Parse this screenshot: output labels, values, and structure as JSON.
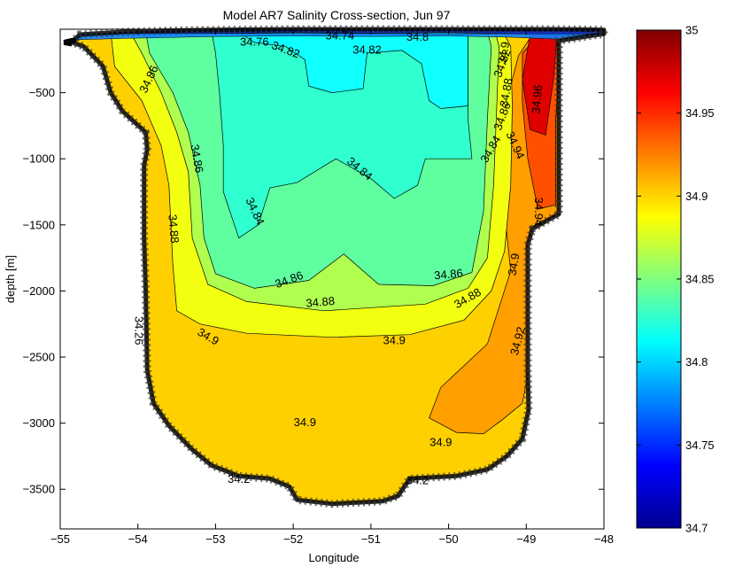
{
  "chart_data": {
    "type": "contour",
    "title": "Model AR7 Salinity Cross-section, Jun 97",
    "xlabel": "Longitude",
    "ylabel": "depth [m]",
    "xlim": [
      -55,
      -48
    ],
    "ylim": [
      -3800,
      -20
    ],
    "xticks": [
      -55,
      -54,
      -53,
      -52,
      -51,
      -50,
      -49,
      -48
    ],
    "xtick_labels": [
      "−55",
      "−54",
      "−53",
      "−52",
      "−51",
      "−50",
      "−49",
      "−48"
    ],
    "yticks": [
      -500,
      -1000,
      -1500,
      -2000,
      -2500,
      -3000,
      -3500
    ],
    "ytick_labels": [
      "−500",
      "−1000",
      "−1500",
      "−2000",
      "−2500",
      "−3000",
      "−3500"
    ],
    "colorbar": {
      "min": 34.7,
      "max": 35,
      "colormap": "jet",
      "ticks": [
        34.7,
        34.75,
        34.8,
        34.85,
        34.9,
        34.95,
        35
      ],
      "tick_labels": [
        "34.7",
        "34.75",
        "34.8",
        "34.85",
        "34.9",
        "34.95",
        "35"
      ]
    },
    "levels": [
      {
        "value": 34.82,
        "color": "#10ffff"
      },
      {
        "value": 34.84,
        "color": "#30ffcf"
      },
      {
        "value": 34.86,
        "color": "#5fffa0"
      },
      {
        "value": 34.88,
        "color": "#b0ff4f"
      },
      {
        "value": 34.9,
        "color": "#f2ff10"
      },
      {
        "value": 34.92,
        "color": "#ffd000"
      },
      {
        "value": 34.94,
        "color": "#ff9f00"
      },
      {
        "value": 34.96,
        "color": "#ff5000"
      },
      {
        "value": 34.98,
        "color": "#e00000"
      }
    ],
    "contour_labels": [
      {
        "text": "34.82",
        "x": -51.05,
        "y": -180,
        "rotate": 0
      },
      {
        "text": "34.82",
        "x": -52.1,
        "y": -180,
        "rotate": 20
      },
      {
        "text": "34.82",
        "x": -49.3,
        "y": -280,
        "rotate": -70
      },
      {
        "text": "34.84",
        "x": -52.5,
        "y": -1400,
        "rotate": 65
      },
      {
        "text": "34.84",
        "x": -51.15,
        "y": -1080,
        "rotate": 40
      },
      {
        "text": "34.84",
        "x": -49.45,
        "y": -930,
        "rotate": -60
      },
      {
        "text": "34.86",
        "x": -53.25,
        "y": -1000,
        "rotate": 80
      },
      {
        "text": "34.86",
        "x": -52.05,
        "y": -1920,
        "rotate": -20
      },
      {
        "text": "34.86",
        "x": -50.0,
        "y": -1880,
        "rotate": -5
      },
      {
        "text": "34.86",
        "x": -53.85,
        "y": -400,
        "rotate": -65
      },
      {
        "text": "34.86",
        "x": -49.3,
        "y": -680,
        "rotate": -70
      },
      {
        "text": "34.88",
        "x": -53.55,
        "y": -1530,
        "rotate": 85
      },
      {
        "text": "34.88",
        "x": -51.65,
        "y": -2090,
        "rotate": -5
      },
      {
        "text": "34.88",
        "x": -49.75,
        "y": -2060,
        "rotate": -30
      },
      {
        "text": "34.88",
        "x": -49.25,
        "y": -500,
        "rotate": -80
      },
      {
        "text": "34.9",
        "x": -53.1,
        "y": -2350,
        "rotate": 30
      },
      {
        "text": "34.9",
        "x": -50.7,
        "y": -2380,
        "rotate": 0
      },
      {
        "text": "34.9",
        "x": -49.15,
        "y": -1800,
        "rotate": -80
      },
      {
        "text": "34.9",
        "x": -51.85,
        "y": -3000,
        "rotate": 0
      },
      {
        "text": "34.9",
        "x": -50.1,
        "y": -3150,
        "rotate": 0
      },
      {
        "text": "34.9",
        "x": -49.28,
        "y": -200,
        "rotate": -80
      },
      {
        "text": "34.92",
        "x": -49.1,
        "y": -2380,
        "rotate": -75
      },
      {
        "text": "34.94",
        "x": -48.85,
        "y": -1400,
        "rotate": 90
      },
      {
        "text": "34.94",
        "x": -49.15,
        "y": -900,
        "rotate": 65
      },
      {
        "text": "34.96",
        "x": -48.85,
        "y": -550,
        "rotate": -85
      },
      {
        "text": "34.26",
        "x": -54.0,
        "y": -2300,
        "rotate": 90
      },
      {
        "text": "34.76",
        "x": -52.5,
        "y": -120,
        "rotate": 0
      },
      {
        "text": "34.74",
        "x": -51.4,
        "y": -75,
        "rotate": 0
      },
      {
        "text": "34.8",
        "x": -50.4,
        "y": -85,
        "rotate": 0
      },
      {
        "text": "34.2",
        "x": -52.7,
        "y": -3430,
        "rotate": 0
      },
      {
        "text": "34.2",
        "x": -50.4,
        "y": -3440,
        "rotate": 0
      }
    ]
  }
}
